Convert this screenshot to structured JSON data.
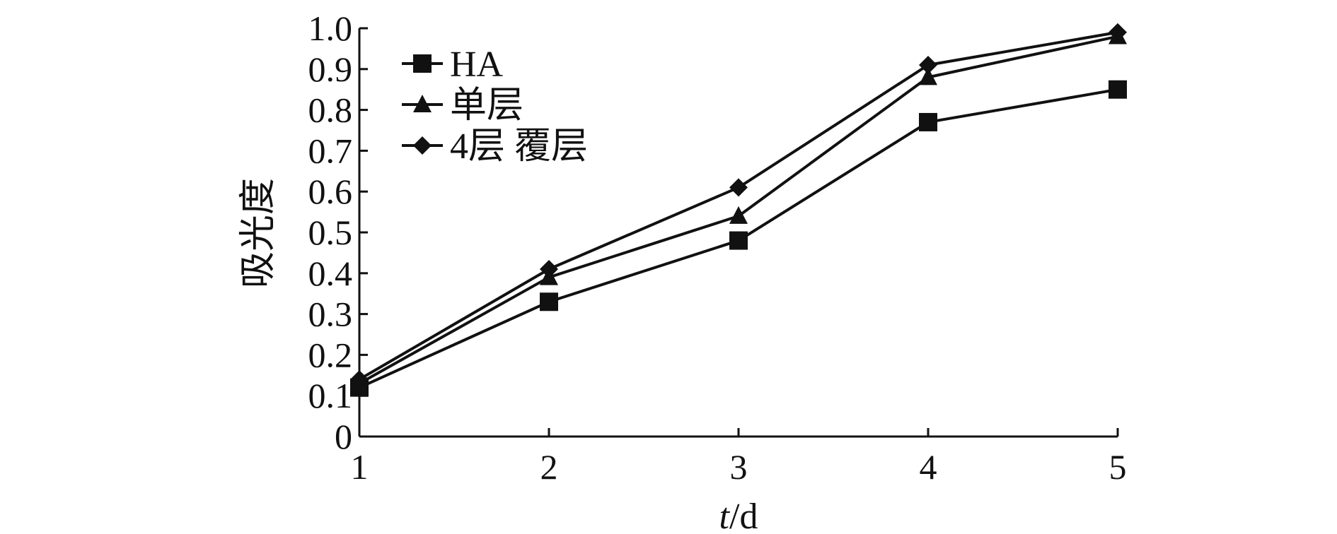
{
  "chart_data": {
    "type": "line",
    "xlabel_italic": "t",
    "xlabel_unit": "/d",
    "ylabel": "吸光度",
    "x": [
      1,
      2,
      3,
      4,
      5
    ],
    "xlim": [
      1,
      5
    ],
    "ylim": [
      0,
      1.0
    ],
    "xticks": [
      "1",
      "2",
      "3",
      "4",
      "5"
    ],
    "yticks": [
      "0",
      "0.1",
      "0.2",
      "0.3",
      "0.4",
      "0.5",
      "0.6",
      "0.7",
      "0.8",
      "0.9",
      "1.0"
    ],
    "grid": false,
    "legend_position": "top-left",
    "series": [
      {
        "name": "HA",
        "marker": "square",
        "values": [
          0.12,
          0.33,
          0.48,
          0.77,
          0.85
        ]
      },
      {
        "name": "单层",
        "marker": "triangle",
        "values": [
          0.13,
          0.39,
          0.54,
          0.88,
          0.98
        ]
      },
      {
        "name": "4层 覆层",
        "marker": "diamond",
        "values": [
          0.14,
          0.41,
          0.61,
          0.91,
          0.99
        ]
      }
    ],
    "colors": {
      "line": "#111111",
      "marker": "#111111",
      "background": "#ffffff"
    }
  }
}
